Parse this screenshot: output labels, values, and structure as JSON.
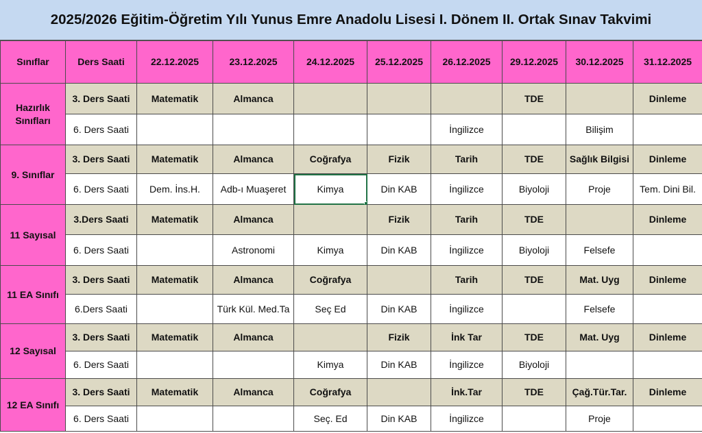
{
  "title": "2025/2026 Eğitim-Öğretim Yılı Yunus Emre Anadolu Lisesi I. Dönem II. Ortak Sınav Takvimi",
  "headers": [
    "Sınıflar",
    "Ders Saati",
    "22.12.2025",
    "23.12.2025",
    "24.12.2025",
    "25.12.2025",
    "26.12.2025",
    "29.12.2025",
    "30.12.2025",
    "31.12.2025"
  ],
  "groups": [
    {
      "class_name": "Hazırlık Sınıfları",
      "rows": [
        {
          "period": "3. Ders Saati",
          "cells": [
            "Matematik",
            "Almanca",
            "",
            "",
            "",
            "TDE",
            "",
            "Dinleme"
          ]
        },
        {
          "period": "6. Ders Saati",
          "cells": [
            "",
            "",
            "",
            "",
            "İngilizce",
            "",
            "Bilişim",
            ""
          ]
        }
      ]
    },
    {
      "class_name": "9. Sınıflar",
      "rows": [
        {
          "period": "3. Ders Saati",
          "cells": [
            "Matematik",
            "Almanca",
            "Coğrafya",
            "Fizik",
            "Tarih",
            "TDE",
            "Sağlık Bilgisi",
            "Dinleme"
          ]
        },
        {
          "period": "6. Ders Saati",
          "cells": [
            "Dem. İns.H.",
            "Adb-ı Muaşeret",
            "Kimya",
            "Din KAB",
            "İngilizce",
            "Biyoloji",
            "Proje",
            "Tem. Dini Bil."
          ]
        }
      ]
    },
    {
      "class_name": "11 Sayısal",
      "rows": [
        {
          "period": "3.Ders  Saati",
          "cells": [
            "Matematik",
            "Almanca",
            "",
            "Fizik",
            "Tarih",
            "TDE",
            "",
            "Dinleme"
          ]
        },
        {
          "period": "6. Ders Saati",
          "cells": [
            "",
            "Astronomi",
            "Kimya",
            "Din KAB",
            "İngilizce",
            "Biyoloji",
            "Felsefe",
            ""
          ]
        }
      ]
    },
    {
      "class_name": "11 EA Sınıfı",
      "rows": [
        {
          "period": "3. Ders Saati",
          "cells": [
            "Matematik",
            "Almanca",
            "Coğrafya",
            "",
            "Tarih",
            "TDE",
            "Mat. Uyg",
            "Dinleme"
          ]
        },
        {
          "period": "6.Ders Saati",
          "cells": [
            "",
            "Türk Kül. Med.Ta",
            "Seç Ed",
            "Din KAB",
            "İngilizce",
            "",
            "Felsefe",
            ""
          ]
        }
      ]
    },
    {
      "class_name": "12 Sayısal",
      "rows": [
        {
          "period": "3. Ders Saati",
          "cells": [
            "Matematik",
            "Almanca",
            "",
            "Fizik",
            "İnk Tar",
            "TDE",
            "Mat. Uyg",
            "Dinleme"
          ]
        },
        {
          "period": "6. Ders Saati",
          "cells": [
            "",
            "",
            "Kimya",
            "Din KAB",
            "İngilizce",
            "Biyoloji",
            "",
            ""
          ]
        }
      ]
    },
    {
      "class_name": "12 EA  Sınıfı",
      "rows": [
        {
          "period": "3. Ders  Saati",
          "cells": [
            "Matematik",
            "Almanca",
            "Coğrafya",
            "",
            "İnk.Tar",
            "TDE",
            "Çağ.Tür.Tar.",
            "Dinleme"
          ]
        },
        {
          "period": "6. Ders Saati",
          "cells": [
            "",
            "",
            "Seç. Ed",
            "Din KAB",
            "İngilizce",
            "",
            "Proje",
            ""
          ]
        }
      ]
    }
  ],
  "colors": {
    "title_bg": "#c5d9f1",
    "header_bg": "#ff66cc",
    "period3_bg": "#ddd9c4",
    "period6_bg": "#ffffff",
    "selection": "#217346"
  }
}
